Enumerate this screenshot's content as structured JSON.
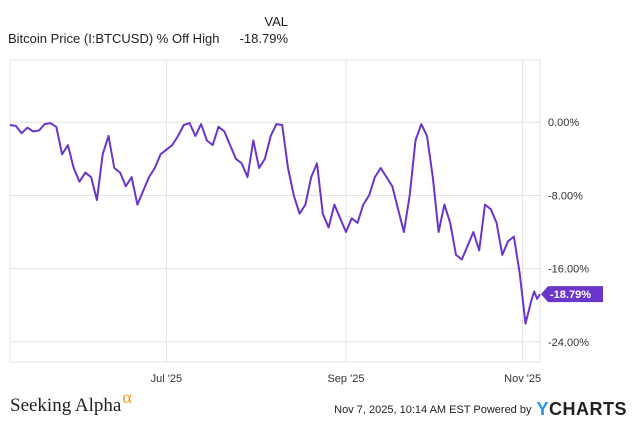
{
  "legend": {
    "column_header": "VAL",
    "series_name": "Bitcoin Price (I:BTCUSD) % Off High",
    "series_value": "-18.79%"
  },
  "footer": {
    "brand": "Seeking Alpha",
    "brand_symbol": "α",
    "timestamp": "Nov 7, 2025, 10:14 AM EST Powered by",
    "provider": "YCHARTS"
  },
  "colors": {
    "line": "#6a35c9",
    "grid": "#e3e3e3",
    "axis_text": "#333333",
    "brand_accent": "#f79a29"
  },
  "chart_data": {
    "type": "line",
    "title": "",
    "xlabel": "",
    "ylabel": "",
    "x_ticks": [
      {
        "label": "Jul '25",
        "date": "2025-07-01"
      },
      {
        "label": "Sep '25",
        "date": "2025-09-01"
      },
      {
        "label": "Nov '25",
        "date": "2025-11-01"
      }
    ],
    "y_ticks": [
      {
        "label": "0.00%",
        "value": 0
      },
      {
        "label": "-8.00%",
        "value": -8
      },
      {
        "label": "-16.00%",
        "value": -16
      },
      {
        "label": "-24.00%",
        "value": -24
      }
    ],
    "ylim": [
      -26.2,
      6.8
    ],
    "xlim": [
      "2025-05-08",
      "2025-11-07"
    ],
    "grid": true,
    "end_label": "-18.79%",
    "series": [
      {
        "x": [
          "2025-05-08",
          "2025-05-10",
          "2025-05-12",
          "2025-05-14",
          "2025-05-16",
          "2025-05-18",
          "2025-05-20",
          "2025-05-22",
          "2025-05-24",
          "2025-05-26",
          "2025-05-28",
          "2025-05-30",
          "2025-06-01",
          "2025-06-03",
          "2025-06-05",
          "2025-06-07",
          "2025-06-09",
          "2025-06-11",
          "2025-06-13",
          "2025-06-15",
          "2025-06-17",
          "2025-06-19",
          "2025-06-21",
          "2025-06-23",
          "2025-06-25",
          "2025-06-27",
          "2025-06-29",
          "2025-07-01",
          "2025-07-03",
          "2025-07-05",
          "2025-07-07",
          "2025-07-09",
          "2025-07-11",
          "2025-07-13",
          "2025-07-15",
          "2025-07-17",
          "2025-07-19",
          "2025-07-21",
          "2025-07-23",
          "2025-07-25",
          "2025-07-27",
          "2025-07-29",
          "2025-07-31",
          "2025-08-02",
          "2025-08-04",
          "2025-08-06",
          "2025-08-08",
          "2025-08-10",
          "2025-08-12",
          "2025-08-14",
          "2025-08-16",
          "2025-08-18",
          "2025-08-20",
          "2025-08-22",
          "2025-08-24",
          "2025-08-26",
          "2025-08-28",
          "2025-08-30",
          "2025-09-01",
          "2025-09-03",
          "2025-09-05",
          "2025-09-07",
          "2025-09-09",
          "2025-09-11",
          "2025-09-13",
          "2025-09-15",
          "2025-09-17",
          "2025-09-19",
          "2025-09-21",
          "2025-09-23",
          "2025-09-25",
          "2025-09-27",
          "2025-09-29",
          "2025-10-01",
          "2025-10-03",
          "2025-10-05",
          "2025-10-07",
          "2025-10-09",
          "2025-10-11",
          "2025-10-13",
          "2025-10-15",
          "2025-10-17",
          "2025-10-19",
          "2025-10-21",
          "2025-10-23",
          "2025-10-25",
          "2025-10-27",
          "2025-10-29",
          "2025-10-31",
          "2025-11-02",
          "2025-11-04",
          "2025-11-05",
          "2025-11-06",
          "2025-11-07"
        ],
        "values": [
          -0.3,
          -0.4,
          -1.2,
          -0.6,
          -1.0,
          -0.9,
          -0.2,
          -0.1,
          -0.5,
          -3.5,
          -2.5,
          -5.0,
          -6.5,
          -5.5,
          -6.0,
          -8.5,
          -3.5,
          -1.5,
          -5.0,
          -5.5,
          -7.0,
          -6.0,
          -9.0,
          -7.5,
          -6.0,
          -5.0,
          -3.5,
          -3.0,
          -2.5,
          -1.5,
          -0.3,
          -0.1,
          -1.5,
          -0.2,
          -2.0,
          -2.5,
          -0.5,
          -1.0,
          -2.5,
          -4.0,
          -4.5,
          -6.0,
          -2.0,
          -5.0,
          -4.0,
          -1.5,
          -0.2,
          -0.3,
          -5.0,
          -8.0,
          -10.0,
          -9.0,
          -6.0,
          -4.5,
          -10.0,
          -11.5,
          -9.0,
          -10.5,
          -12.0,
          -10.5,
          -11.0,
          -9.0,
          -8.0,
          -6.0,
          -5.0,
          -6.0,
          -7.0,
          -9.5,
          -12.0,
          -8.0,
          -2.0,
          -0.2,
          -1.5,
          -6.0,
          -12.0,
          -9.0,
          -11.0,
          -14.5,
          -15.0,
          -13.5,
          -12.0,
          -14.0,
          -9.0,
          -9.5,
          -11.0,
          -14.5,
          -13.0,
          -12.5,
          -16.5,
          -22.0,
          -19.5,
          -18.5,
          -19.3,
          -18.79
        ]
      }
    ]
  }
}
